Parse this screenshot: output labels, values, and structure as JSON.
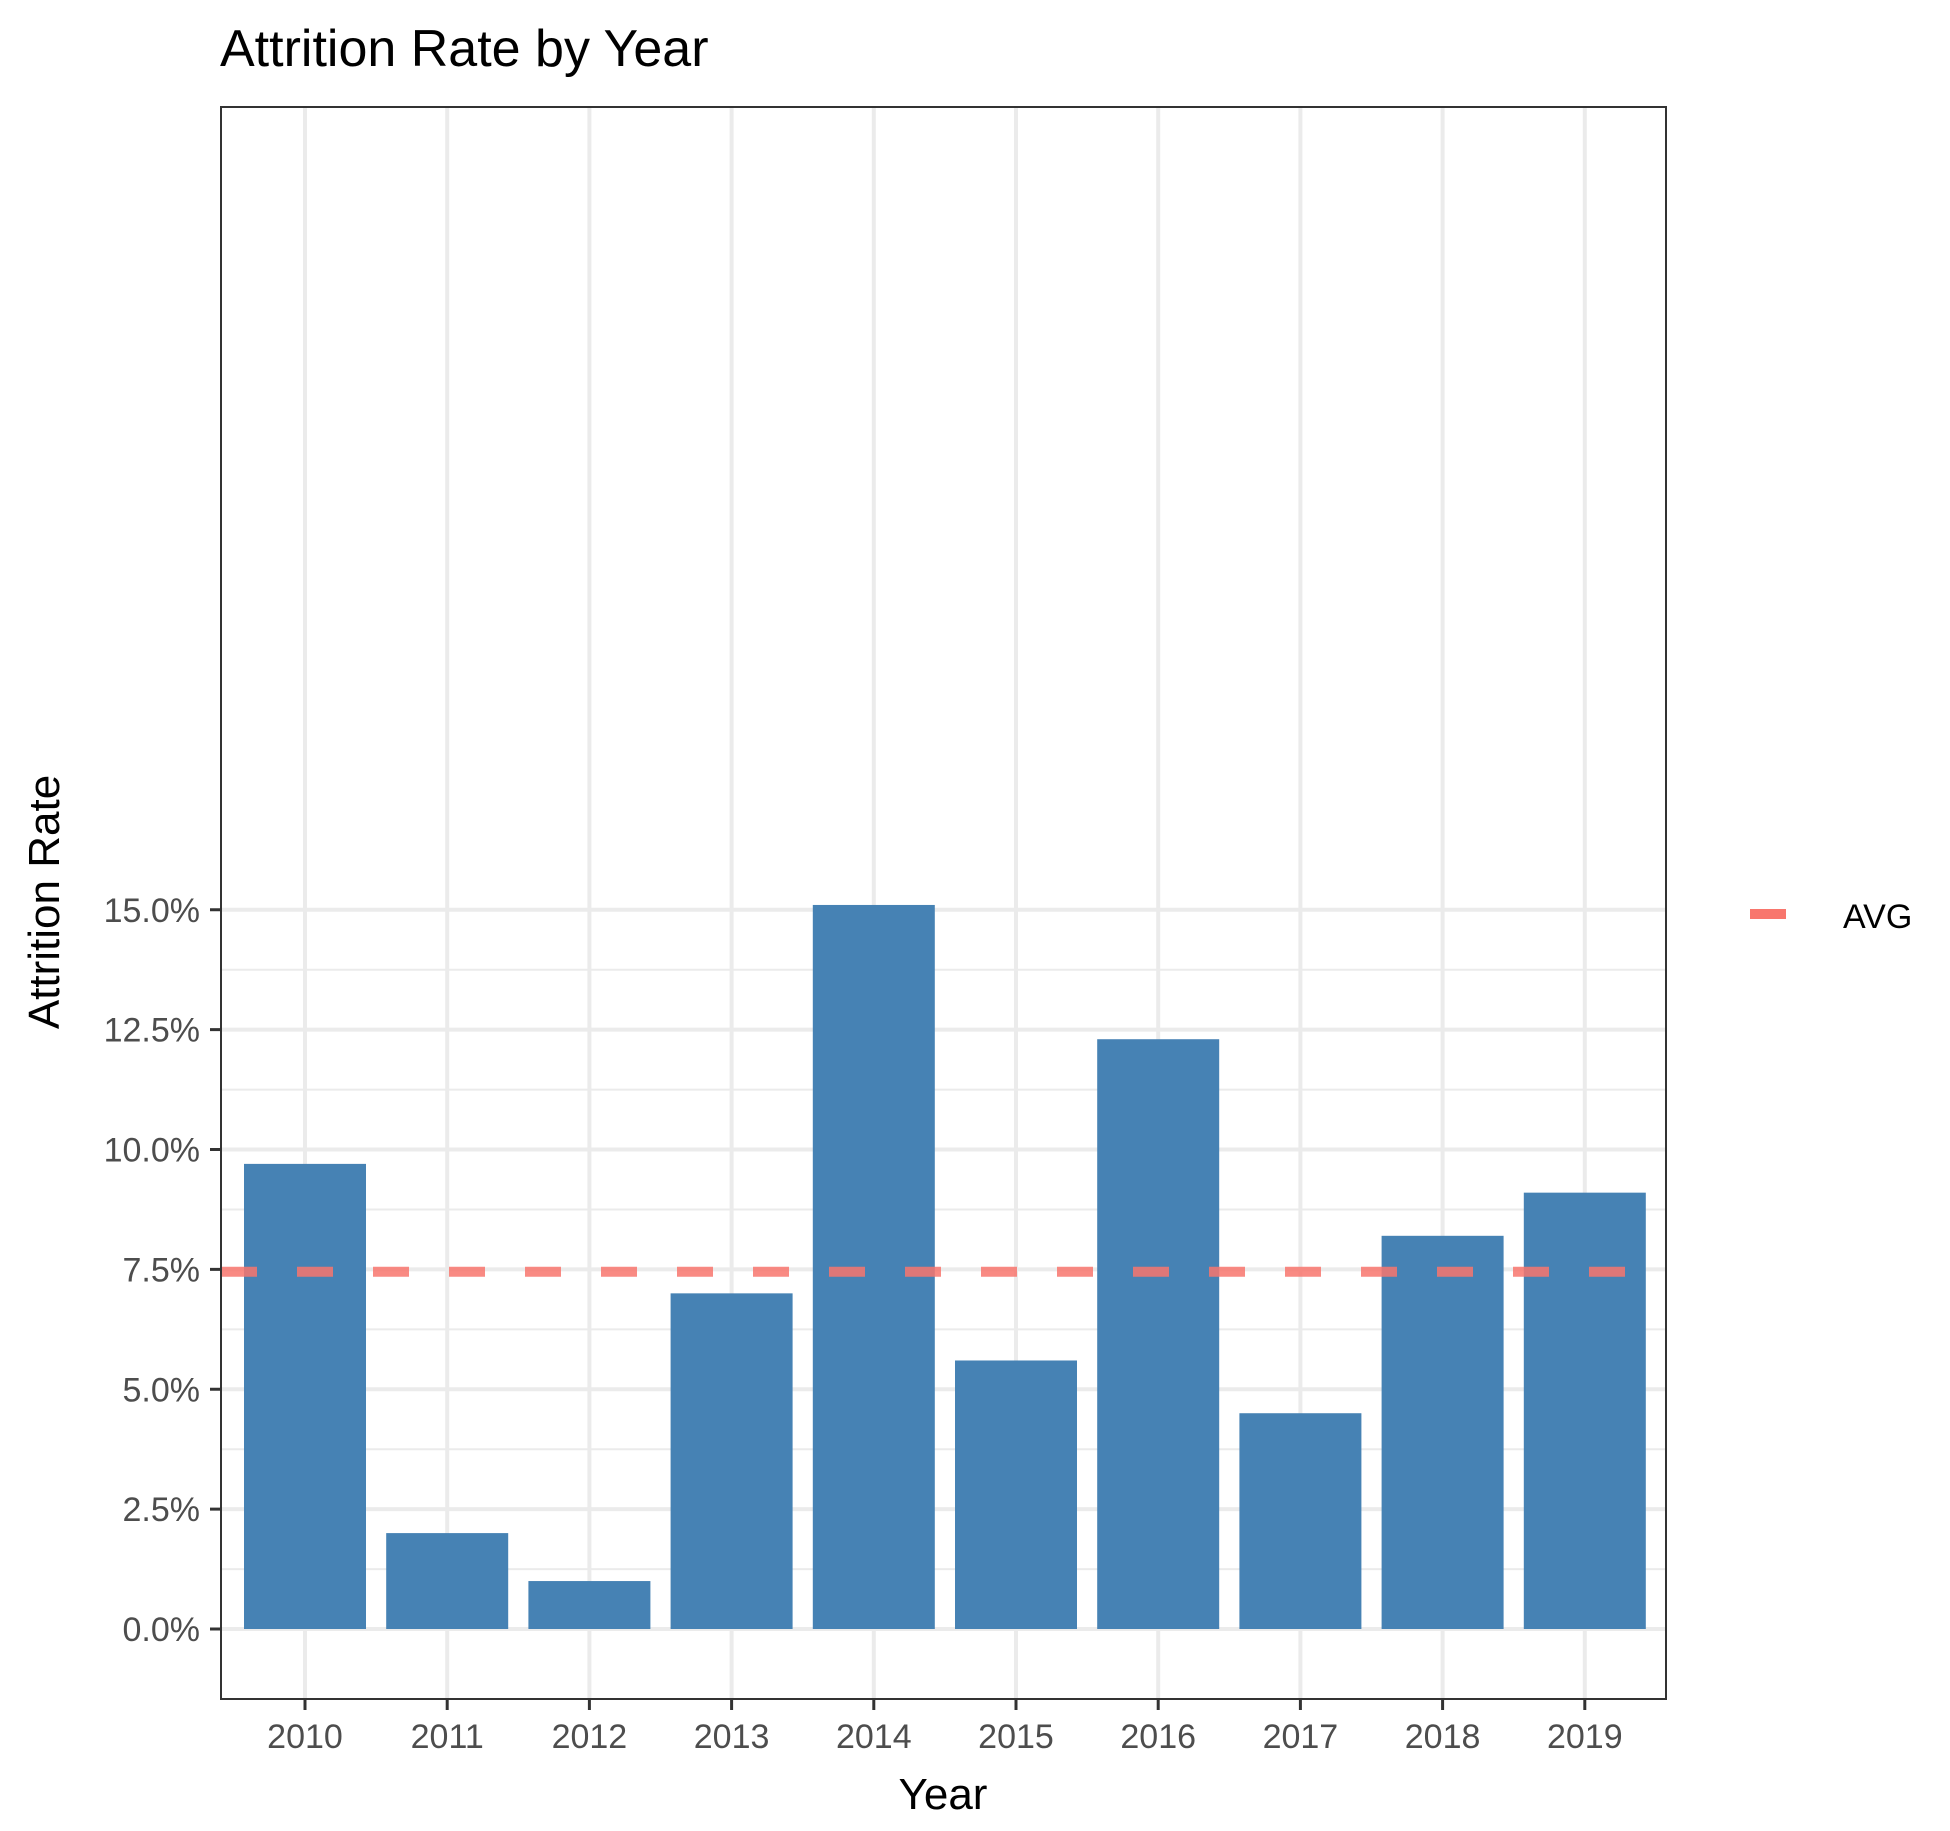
{
  "chart_data": {
    "type": "bar",
    "title": "Attrition Rate by Year",
    "xlabel": "Year",
    "ylabel": "Attrition Rate",
    "categories": [
      "2010",
      "2011",
      "2012",
      "2013",
      "2014",
      "2015",
      "2016",
      "2017",
      "2018",
      "2019"
    ],
    "values": [
      9.7,
      2.0,
      1.0,
      7.0,
      15.1,
      5.6,
      12.3,
      4.5,
      8.2,
      9.1
    ],
    "value_unit": "%",
    "ylim": [
      -0.75,
      15.85
    ],
    "y_ticks": [
      0.0,
      2.5,
      5.0,
      7.5,
      10.0,
      12.5,
      15.0
    ],
    "y_tick_labels": [
      "0.0%",
      "2.5%",
      "5.0%",
      "7.5%",
      "10.0%",
      "12.5%",
      "15.0%"
    ],
    "reference_line": {
      "label": "AVG",
      "value": 7.45,
      "style": "dashed",
      "color": "#F8766D"
    },
    "bar_color": "#4682B4",
    "grid": true,
    "legend": {
      "entries": [
        "AVG"
      ],
      "position": "right"
    }
  }
}
